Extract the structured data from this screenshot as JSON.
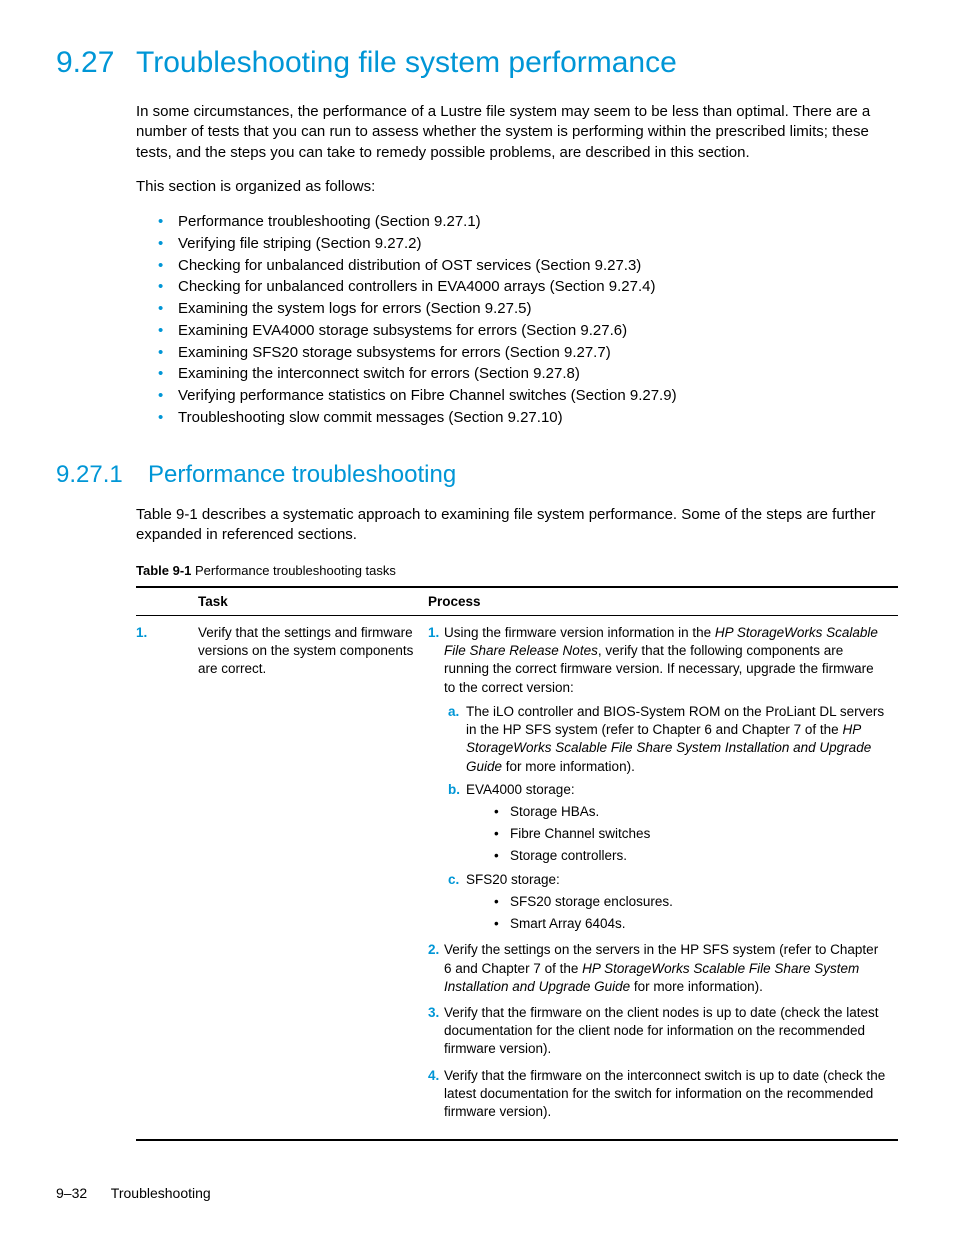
{
  "colors": {
    "accent": "#0096d6",
    "text": "#000000",
    "bg": "#ffffff"
  },
  "h1": {
    "num": "9.27",
    "title": "Troubleshooting file system performance"
  },
  "intro_para": "In some circumstances, the performance of a Lustre file system may seem to be less than optimal. There are a number of tests that you can run to assess whether the system is performing within the prescribed limits; these tests, and the steps you can take to remedy possible problems, are described in this section.",
  "org_para": "This section is organized as follows:",
  "toc": [
    "Performance troubleshooting (Section 9.27.1)",
    "Verifying file striping (Section 9.27.2)",
    "Checking for unbalanced distribution of OST services (Section 9.27.3)",
    "Checking for unbalanced controllers in EVA4000 arrays (Section 9.27.4)",
    "Examining the system logs for errors (Section 9.27.5)",
    "Examining EVA4000 storage subsystems for errors (Section 9.27.6)",
    "Examining SFS20 storage subsystems for errors (Section 9.27.7)",
    "Examining the interconnect switch for errors (Section 9.27.8)",
    "Verifying performance statistics on Fibre Channel switches (Section 9.27.9)",
    "Troubleshooting slow commit messages (Section 9.27.10)"
  ],
  "h2": {
    "num": "9.27.1",
    "title": "Performance troubleshooting"
  },
  "h2_para": "Table 9-1 describes a systematic approach to examining file system performance. Some of the steps are further expanded in referenced sections.",
  "table": {
    "caption_bold": "Table 9-1",
    "caption_rest": " Performance troubleshooting tasks",
    "headers": {
      "col1": "",
      "col2": "Task",
      "col3": "Process"
    },
    "row": {
      "num": "1.",
      "task": "Verify that the settings and firmware versions on the system components are correct.",
      "p1_pre": "Using the firmware version information in the ",
      "p1_doc": "HP StorageWorks Scalable File Share Release Notes",
      "p1_post": ", verify that the following components are running the correct firmware version. If necessary, upgrade the firmware to the correct version:",
      "a_pre": "The iLO controller and BIOS-System ROM on the ProLiant DL servers in the HP SFS system (refer to Chapter 6 and Chapter 7 of the ",
      "a_doc": "HP StorageWorks Scalable File Share System Installation and Upgrade Guide",
      "a_post": " for more information).",
      "b_label": "EVA4000 storage:",
      "b_items": [
        "Storage HBAs.",
        "Fibre Channel switches",
        "Storage controllers."
      ],
      "c_label": "SFS20 storage:",
      "c_items": [
        "SFS20 storage enclosures.",
        "Smart Array 6404s."
      ],
      "p2_pre": "Verify the settings on the servers in the HP SFS system (refer to Chapter 6 and Chapter 7 of the ",
      "p2_doc": "HP StorageWorks Scalable File Share System Installation and Upgrade Guide",
      "p2_post": " for more information).",
      "p3": "Verify that the firmware on the client nodes is up to date (check the latest documentation for the client node for information on the recommended firmware version).",
      "p4": "Verify that the firmware on the interconnect switch is up to date (check the latest documentation for the switch for information on the recommended firmware version)."
    }
  },
  "footer": {
    "page": "9–32",
    "chapter": "Troubleshooting"
  }
}
